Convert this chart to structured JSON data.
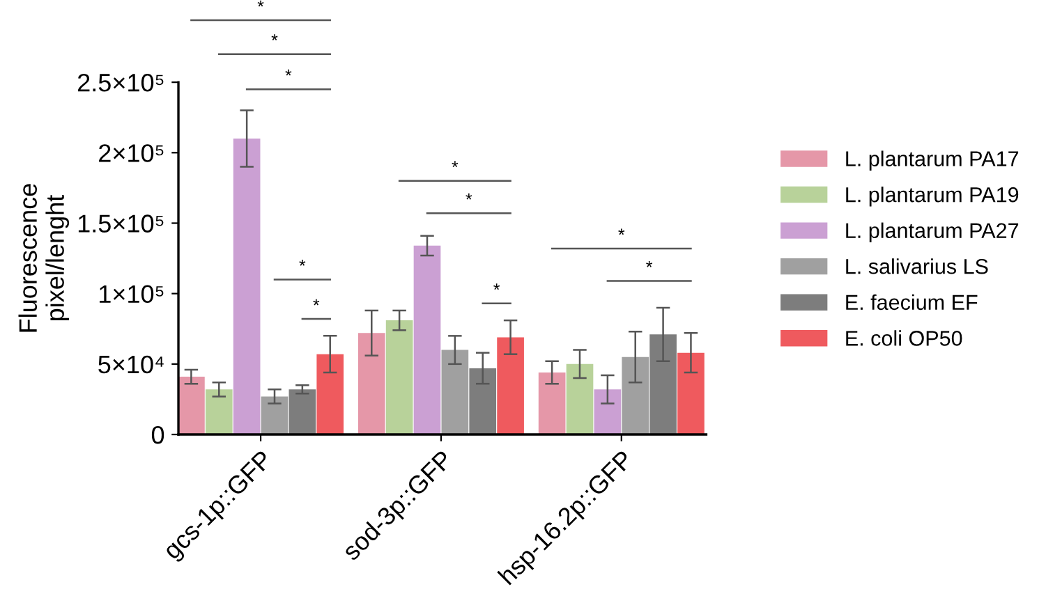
{
  "chart_data": {
    "type": "bar",
    "ylabel": "Fluorescence\npixel/lenght",
    "categories": [
      "gcs-1p::GFP",
      "sod-3p::GFP",
      "hsp-16.2p::GFP"
    ],
    "series": [
      {
        "name": "L. plantarum PA17",
        "color": "#e597a8",
        "values": [
          41000,
          72000,
          44000
        ],
        "errors": [
          5000,
          16000,
          8000
        ]
      },
      {
        "name": "L. plantarum PA19",
        "color": "#b8d29a",
        "values": [
          32000,
          81000,
          50000
        ],
        "errors": [
          5000,
          7000,
          10000
        ]
      },
      {
        "name": "L. plantarum PA27",
        "color": "#cba0d3",
        "values": [
          210000,
          134000,
          32000
        ],
        "errors": [
          20000,
          7000,
          10000
        ]
      },
      {
        "name": "L. salivarius LS",
        "color": "#a0a0a0",
        "values": [
          27000,
          60000,
          55000
        ],
        "errors": [
          5000,
          10000,
          18000
        ]
      },
      {
        "name": "E. faecium EF",
        "color": "#7d7d7d",
        "values": [
          32000,
          47000,
          71000
        ],
        "errors": [
          3000,
          11000,
          19000
        ]
      },
      {
        "name": "E. coli OP50",
        "color": "#ef5a5e",
        "values": [
          57000,
          69000,
          58000
        ],
        "errors": [
          13000,
          12000,
          14000
        ]
      }
    ],
    "ylim": [
      0,
      250000
    ],
    "yticks": [
      0,
      {
        "value": 50000,
        "label": "5×10⁴"
      },
      {
        "value": 100000,
        "label": "1×10⁵"
      },
      {
        "value": 150000,
        "label": "1.5×10⁵"
      },
      {
        "value": 200000,
        "label": "2×10⁵"
      },
      {
        "value": 250000,
        "label": "2.5×10⁵"
      }
    ],
    "annotations": [
      "*",
      "*",
      "*",
      "*",
      "*",
      "*",
      "*",
      "*",
      "*",
      "*"
    ],
    "legend": "right",
    "grid": false
  }
}
